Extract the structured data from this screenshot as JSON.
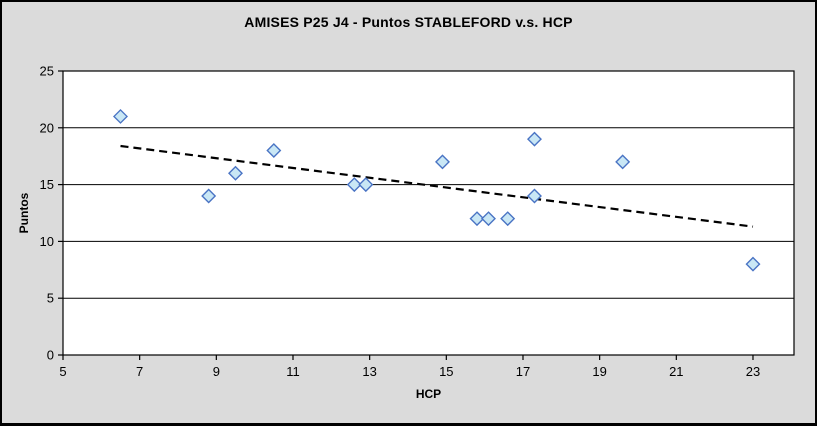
{
  "chart_data": {
    "type": "scatter",
    "title": "AMISES P25 J4 - Puntos STABLEFORD v.s. HCP",
    "xlabel": "HCP",
    "ylabel": "Puntos",
    "xlim": [
      5,
      24.07
    ],
    "ylim": [
      0,
      25
    ],
    "xticks": [
      5,
      7,
      9,
      11,
      13,
      15,
      17,
      19,
      21,
      23
    ],
    "yticks": [
      0,
      5,
      10,
      15,
      20,
      25
    ],
    "grid": "horizontal-only",
    "legend_position": "none",
    "marker_shape": "diamond",
    "points": [
      {
        "x": 6.5,
        "y": 21
      },
      {
        "x": 8.8,
        "y": 14
      },
      {
        "x": 9.5,
        "y": 16
      },
      {
        "x": 10.5,
        "y": 18
      },
      {
        "x": 12.6,
        "y": 15
      },
      {
        "x": 12.9,
        "y": 15
      },
      {
        "x": 14.9,
        "y": 17
      },
      {
        "x": 15.8,
        "y": 12
      },
      {
        "x": 16.1,
        "y": 12
      },
      {
        "x": 16.6,
        "y": 12
      },
      {
        "x": 17.3,
        "y": 14
      },
      {
        "x": 17.3,
        "y": 19
      },
      {
        "x": 19.6,
        "y": 17
      },
      {
        "x": 23.0,
        "y": 8
      }
    ],
    "trendline": {
      "type": "linear",
      "style": "dashed",
      "x1": 6.5,
      "y1": 18.4,
      "x2": 23.0,
      "y2": 11.3
    },
    "colors": {
      "figure_bg": "#DBDBDB",
      "plot_bg": "#FFFFFF",
      "grid_line": "#000000",
      "axis_line": "#000000",
      "marker_fill": "#C9E7F5",
      "marker_stroke": "#4A74C4",
      "trendline_color": "#000000",
      "text": "#000000"
    }
  }
}
